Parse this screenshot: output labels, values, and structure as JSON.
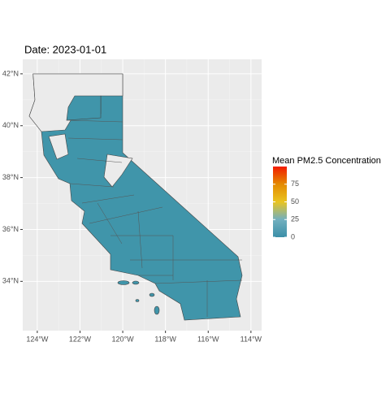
{
  "header": {
    "title": "Date: 2023-01-01"
  },
  "map": {
    "xlim": [
      -124.68,
      -113.5
    ],
    "ylim": [
      32.1,
      42.56
    ],
    "xticks": [
      {
        "value": -124,
        "label": "124°W"
      },
      {
        "value": -122,
        "label": "122°W"
      },
      {
        "value": -120,
        "label": "120°W"
      },
      {
        "value": -118,
        "label": "118°W"
      },
      {
        "value": -116,
        "label": "116°W"
      },
      {
        "value": -114,
        "label": "114°W"
      }
    ],
    "yticks": [
      {
        "value": 34,
        "label": "34°N"
      },
      {
        "value": 36,
        "label": "36°N"
      },
      {
        "value": 38,
        "label": "38°N"
      },
      {
        "value": 40,
        "label": "40°N"
      },
      {
        "value": 42,
        "label": "42°N"
      }
    ],
    "fill_color": "#4095aa",
    "na_color": "#ebebeb"
  },
  "legend": {
    "title": "Mean PM2.5 Concentration",
    "lim": [
      0,
      100
    ],
    "ticks": [
      0,
      25,
      50,
      75
    ],
    "colors": [
      "#3b8fa8",
      "#72b0bf",
      "#e9c420",
      "#e48a00",
      "#f21a00"
    ]
  }
}
